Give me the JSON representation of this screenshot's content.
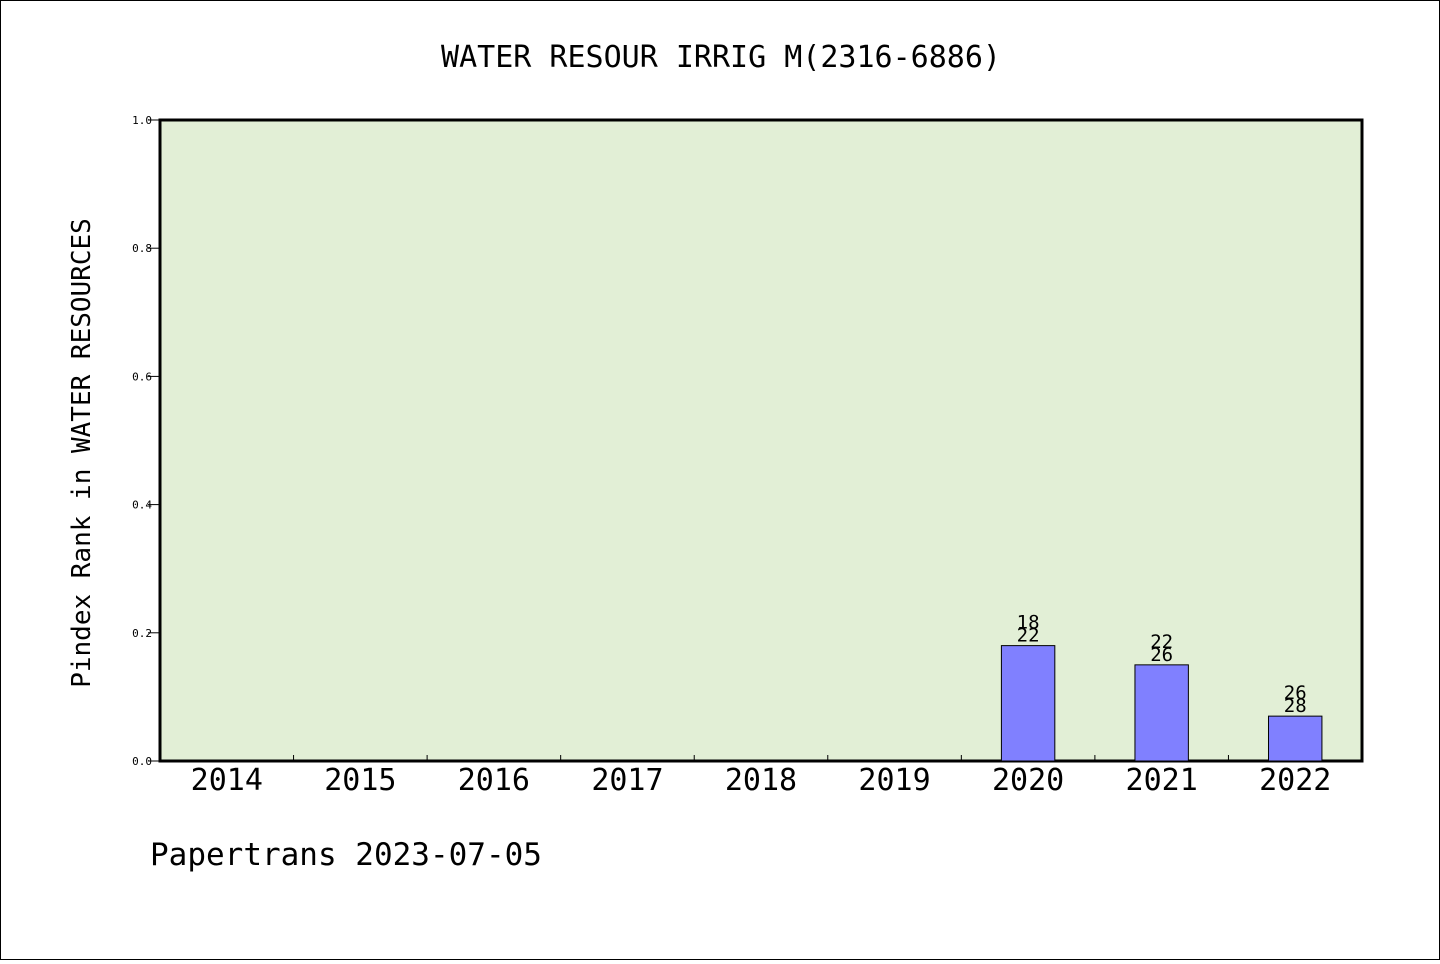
{
  "chart_data": {
    "type": "bar",
    "title": "WATER RESOUR IRRIG M(2316-6886)",
    "xlabel": "",
    "ylabel": "Pindex Rank in WATER RESOURCES",
    "ylim": [
      0,
      1.0
    ],
    "yticks": [
      "0.0",
      "0.2",
      "0.4",
      "0.6",
      "0.8",
      "1.0"
    ],
    "categories": [
      "2014",
      "2015",
      "2016",
      "2017",
      "2018",
      "2019",
      "2020",
      "2021",
      "2022"
    ],
    "values": [
      null,
      null,
      null,
      null,
      null,
      null,
      0.18,
      0.15,
      0.07
    ],
    "bar_labels": [
      null,
      null,
      null,
      null,
      null,
      null,
      [
        "18",
        "22"
      ],
      [
        "22",
        "26"
      ],
      [
        "26",
        "28"
      ]
    ],
    "grid": false,
    "colors": {
      "plot_background": "#e2efd6",
      "bar_fill": "#8080ff",
      "bar_edge": "#000000"
    }
  },
  "footer": {
    "text": "Papertrans 2023-07-05"
  }
}
